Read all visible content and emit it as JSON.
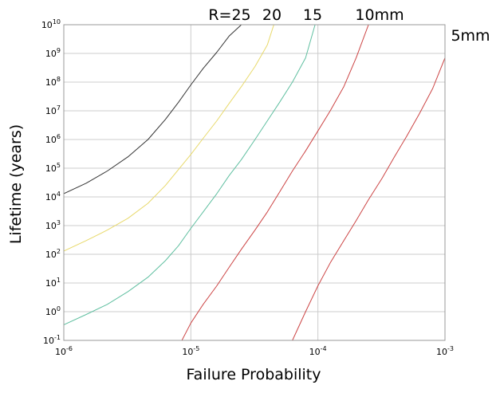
{
  "chart_data": {
    "type": "line",
    "xlabel": "Failure Probability",
    "ylabel": "Lifetime (years)",
    "x_scale": "log",
    "y_scale": "log",
    "xlim": [
      1e-06,
      0.001
    ],
    "ylim": [
      0.1,
      10000000000.0
    ],
    "x_ticks": [
      {
        "value": 1e-06,
        "base": "10",
        "exp": "-6"
      },
      {
        "value": 1e-05,
        "base": "10",
        "exp": "-5"
      },
      {
        "value": 0.0001,
        "base": "10",
        "exp": "-4"
      },
      {
        "value": 0.001,
        "base": "10",
        "exp": "-3"
      }
    ],
    "y_ticks": [
      {
        "value": 0.1,
        "base": "10",
        "exp": "-1"
      },
      {
        "value": 1,
        "base": "10",
        "exp": "0"
      },
      {
        "value": 10,
        "base": "10",
        "exp": "1"
      },
      {
        "value": 100,
        "base": "10",
        "exp": "2"
      },
      {
        "value": 1000,
        "base": "10",
        "exp": "3"
      },
      {
        "value": 10000,
        "base": "10",
        "exp": "4"
      },
      {
        "value": 100000,
        "base": "10",
        "exp": "5"
      },
      {
        "value": 1000000,
        "base": "10",
        "exp": "6"
      },
      {
        "value": 10000000,
        "base": "10",
        "exp": "7"
      },
      {
        "value": 100000000,
        "base": "10",
        "exp": "8"
      },
      {
        "value": 1000000000,
        "base": "10",
        "exp": "9"
      },
      {
        "value": 10000000000,
        "base": "10",
        "exp": "10"
      }
    ],
    "grid": true,
    "series": [
      {
        "name": "R=25",
        "color": "#333333",
        "x": [
          1e-06,
          1.5e-06,
          2.2e-06,
          3.2e-06,
          4.6e-06,
          6.3e-06,
          8e-06,
          1e-05,
          1.25e-05,
          1.6e-05,
          2e-05,
          2.5e-05
        ],
        "y": [
          13000,
          30000,
          80000,
          250000,
          1000000,
          5000000,
          20000000,
          80000000,
          300000000,
          1100000000,
          4000000000,
          10000000000
        ]
      },
      {
        "name": "20",
        "color": "#e8d96a",
        "x": [
          1e-06,
          1.5e-06,
          2.2e-06,
          3.2e-06,
          4.6e-06,
          6.3e-06,
          8e-06,
          1e-05,
          1.25e-05,
          1.6e-05,
          2e-05,
          2.5e-05,
          3.2e-05,
          4e-05,
          4.5e-05
        ],
        "y": [
          130,
          300,
          700,
          1800,
          6000,
          25000,
          90000,
          300000,
          1100000,
          4500000,
          18000000,
          70000000,
          350000000,
          2000000000,
          10000000000
        ]
      },
      {
        "name": "15",
        "color": "#5fbfa0",
        "x": [
          1e-06,
          1.5e-06,
          2.2e-06,
          3.2e-06,
          4.6e-06,
          6.3e-06,
          8e-06,
          1e-05,
          1.25e-05,
          1.6e-05,
          2e-05,
          2.5e-05,
          3.2e-05,
          4e-05,
          5e-05,
          6.3e-05,
          8e-05,
          9.5e-05
        ],
        "y": [
          0.35,
          0.8,
          1.8,
          5,
          16,
          60,
          200,
          800,
          3000,
          13000,
          55000,
          200000,
          1000000,
          4500000,
          20000000,
          100000000,
          700000000,
          10000000000
        ]
      },
      {
        "name": "10mm",
        "color": "#cc4444",
        "x": [
          8.5e-06,
          1e-05,
          1.25e-05,
          1.6e-05,
          2e-05,
          2.5e-05,
          3.2e-05,
          4e-05,
          5e-05,
          6.3e-05,
          8e-05,
          0.0001,
          0.000125,
          0.00016,
          0.0002,
          0.00025
        ],
        "y": [
          0.1,
          0.4,
          1.8,
          8,
          35,
          150,
          700,
          3000,
          15000,
          80000,
          400000,
          2000000,
          10000000,
          70000000,
          700000000,
          10000000000
        ]
      },
      {
        "name": "5mm",
        "color": "#cc4444",
        "x": [
          6.3e-05,
          8e-05,
          0.0001,
          0.000125,
          0.00016,
          0.0002,
          0.00025,
          0.00032,
          0.0004,
          0.0005,
          0.00063,
          0.0008,
          0.001
        ],
        "y": [
          0.1,
          1,
          8,
          50,
          300,
          1500,
          8000,
          45000,
          250000,
          1300000,
          8000000,
          60000000,
          700000000
        ]
      }
    ]
  }
}
